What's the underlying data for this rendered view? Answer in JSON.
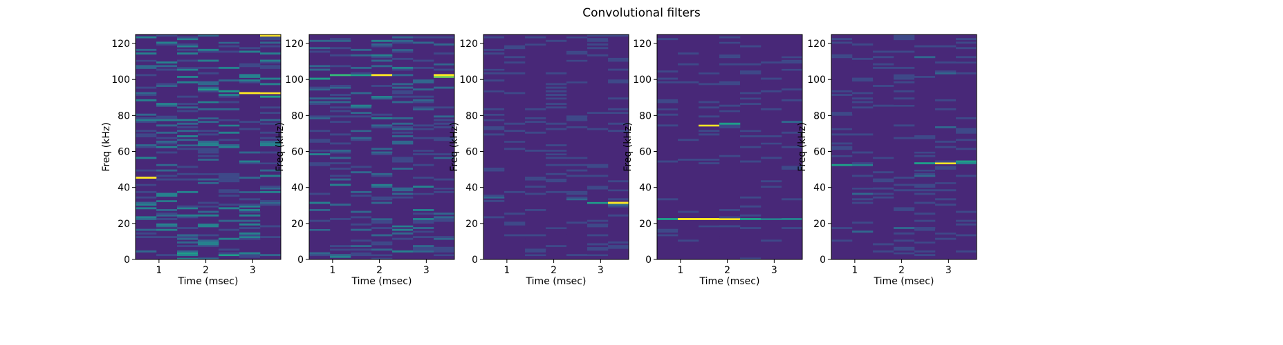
{
  "figure": {
    "title": "Convolutional filters"
  },
  "colormap": [
    "#440154",
    "#482878",
    "#3e4989",
    "#31688e",
    "#26828e",
    "#1f9e89",
    "#35b779",
    "#6ece58",
    "#b5de2b",
    "#fde725"
  ],
  "chart_data": [
    {
      "type": "heatmap",
      "xlabel": "Time (msec)",
      "ylabel": "Freq (kHz)",
      "xlim": [
        0.5,
        3.6
      ],
      "ylim": [
        0,
        125
      ],
      "xticks": [
        1,
        2,
        3
      ],
      "yticks": [
        0,
        20,
        40,
        60,
        80,
        100,
        120
      ],
      "columns": 7,
      "rows": 125,
      "background": 0.12,
      "seed": 11,
      "noise": 0.38,
      "hotspots": [
        {
          "col": 0,
          "freq": 45.5,
          "value": 1.0
        },
        {
          "col": 6,
          "freq": 124,
          "value": 1.0
        },
        {
          "col": 5,
          "freq": 92.5,
          "value": 0.95
        },
        {
          "col": 6,
          "freq": 92.5,
          "value": 0.95
        },
        {
          "col": 4,
          "freq": 93.5,
          "value": 0.55
        },
        {
          "col": 3,
          "freq": 94,
          "value": 0.55
        },
        {
          "col": 6,
          "freq": 90,
          "value": 0.5
        },
        {
          "col": 2,
          "freq": 3,
          "value": 0.55
        },
        {
          "col": 4,
          "freq": 2,
          "value": 0.6
        },
        {
          "col": 0,
          "freq": 30,
          "value": 0.45
        },
        {
          "col": 0,
          "freq": 28,
          "value": 0.4
        },
        {
          "col": 2,
          "freq": 77,
          "value": 0.45
        },
        {
          "col": 1,
          "freq": 19,
          "value": 0.4
        },
        {
          "col": 2,
          "freq": 37,
          "value": 0.4
        },
        {
          "col": 5,
          "freq": 14,
          "value": 0.4
        }
      ]
    },
    {
      "type": "heatmap",
      "xlabel": "Time (msec)",
      "ylabel": "Freq (kHz)",
      "xlim": [
        0.5,
        3.6
      ],
      "ylim": [
        0,
        125
      ],
      "xticks": [
        1,
        2,
        3
      ],
      "yticks": [
        0,
        20,
        40,
        60,
        80,
        100,
        120
      ],
      "columns": 7,
      "rows": 125,
      "background": 0.1,
      "seed": 23,
      "noise": 0.32,
      "hotspots": [
        {
          "col": 3,
          "freq": 102.5,
          "value": 1.0
        },
        {
          "col": 6,
          "freq": 102,
          "value": 0.95
        },
        {
          "col": 6,
          "freq": 101,
          "value": 0.8
        },
        {
          "col": 1,
          "freq": 102.5,
          "value": 0.65
        },
        {
          "col": 0,
          "freq": 100.5,
          "value": 0.55
        },
        {
          "col": 2,
          "freq": 102,
          "value": 0.5
        },
        {
          "col": 4,
          "freq": 16,
          "value": 0.4
        },
        {
          "col": 4,
          "freq": 18,
          "value": 0.4
        },
        {
          "col": 5,
          "freq": 27,
          "value": 0.45
        },
        {
          "col": 1,
          "freq": 60,
          "value": 0.35
        }
      ]
    },
    {
      "type": "heatmap",
      "xlabel": "Time (msec)",
      "ylabel": "Freq (kHz)",
      "xlim": [
        0.5,
        3.6
      ],
      "ylim": [
        0,
        125
      ],
      "xticks": [
        1,
        2,
        3
      ],
      "yticks": [
        0,
        20,
        40,
        60,
        80,
        100,
        120
      ],
      "columns": 7,
      "rows": 125,
      "background": 0.08,
      "seed": 37,
      "noise": 0.2,
      "hotspots": [
        {
          "col": 6,
          "freq": 31.5,
          "value": 1.0
        },
        {
          "col": 5,
          "freq": 31.5,
          "value": 0.55
        },
        {
          "col": 4,
          "freq": 33,
          "value": 0.35
        },
        {
          "col": 0,
          "freq": 34.5,
          "value": 0.35
        }
      ]
    },
    {
      "type": "heatmap",
      "xlabel": "Time (msec)",
      "ylabel": "Freq (kHz)",
      "xlim": [
        0.5,
        3.6
      ],
      "ylim": [
        0,
        125
      ],
      "xticks": [
        1,
        2,
        3
      ],
      "yticks": [
        0,
        20,
        40,
        60,
        80,
        100,
        120
      ],
      "columns": 7,
      "rows": 125,
      "background": 0.07,
      "seed": 51,
      "noise": 0.16,
      "hotspots": [
        {
          "col": 1,
          "freq": 22.5,
          "value": 1.0
        },
        {
          "col": 2,
          "freq": 22.5,
          "value": 1.0
        },
        {
          "col": 3,
          "freq": 22.5,
          "value": 1.0
        },
        {
          "col": 0,
          "freq": 22.5,
          "value": 0.5
        },
        {
          "col": 4,
          "freq": 22.5,
          "value": 0.5
        },
        {
          "col": 5,
          "freq": 22.5,
          "value": 0.45
        },
        {
          "col": 6,
          "freq": 22.5,
          "value": 0.4
        },
        {
          "col": 2,
          "freq": 74.5,
          "value": 1.0
        },
        {
          "col": 3,
          "freq": 75.5,
          "value": 0.55
        },
        {
          "col": 6,
          "freq": 76.5,
          "value": 0.3
        }
      ]
    },
    {
      "type": "heatmap",
      "xlabel": "Time (msec)",
      "ylabel": "Freq (kHz)",
      "xlim": [
        0.5,
        3.6
      ],
      "ylim": [
        0,
        125
      ],
      "xticks": [
        1,
        2,
        3
      ],
      "yticks": [
        0,
        20,
        40,
        60,
        80,
        100,
        120
      ],
      "columns": 7,
      "rows": 125,
      "background": 0.09,
      "seed": 67,
      "noise": 0.2,
      "hotspots": [
        {
          "col": 5,
          "freq": 53.5,
          "value": 1.0
        },
        {
          "col": 6,
          "freq": 54,
          "value": 0.55
        },
        {
          "col": 4,
          "freq": 53.5,
          "value": 0.5
        },
        {
          "col": 0,
          "freq": 52.5,
          "value": 0.5
        },
        {
          "col": 1,
          "freq": 52.5,
          "value": 0.4
        },
        {
          "col": 6,
          "freq": 53,
          "value": 0.4
        }
      ]
    }
  ]
}
